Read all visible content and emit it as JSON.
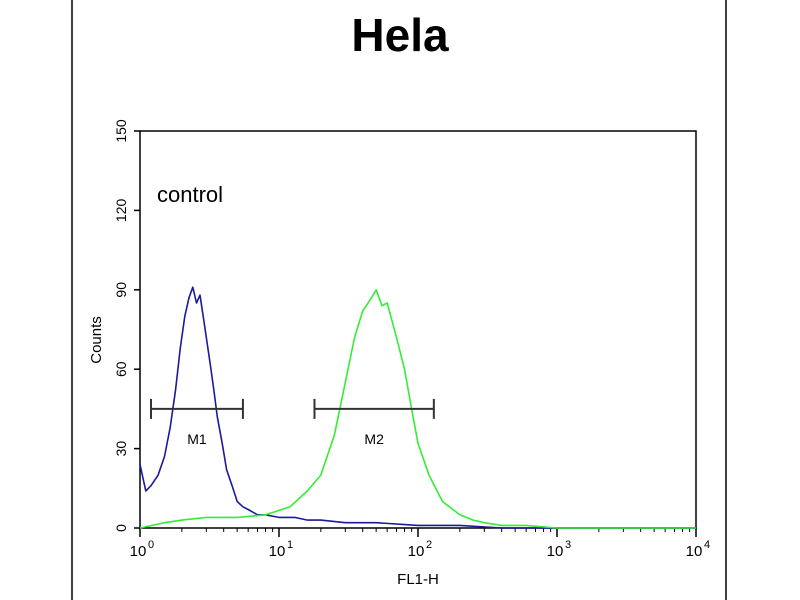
{
  "chart_data": {
    "type": "line",
    "title": "Hela",
    "xlabel": "FL1-H",
    "ylabel": "Counts",
    "xscale": "log",
    "xlim": [
      1,
      10000
    ],
    "ylim": [
      0,
      150
    ],
    "xticks": [
      {
        "value": 1,
        "base": "10",
        "exp": "0"
      },
      {
        "value": 10,
        "base": "10",
        "exp": "1"
      },
      {
        "value": 100,
        "base": "10",
        "exp": "2"
      },
      {
        "value": 1000,
        "base": "10",
        "exp": "3"
      },
      {
        "value": 10000,
        "base": "10",
        "exp": "4"
      }
    ],
    "yticks": [
      0,
      30,
      60,
      90,
      120,
      150
    ],
    "annotation": "control",
    "series": [
      {
        "color": "#1a1a9c",
        "x": [
          1.0,
          1.1,
          1.2,
          1.35,
          1.5,
          1.65,
          1.8,
          1.95,
          2.1,
          2.25,
          2.4,
          2.55,
          2.7,
          2.85,
          3.0,
          3.2,
          3.4,
          3.6,
          3.9,
          4.2,
          4.6,
          5.0,
          5.5,
          6.0,
          7.0,
          8.0,
          10,
          13,
          16,
          20,
          30,
          50,
          100,
          200,
          400,
          1000,
          10000
        ],
        "y": [
          24,
          14,
          16,
          20,
          27,
          38,
          52,
          68,
          80,
          87,
          91,
          85,
          88,
          80,
          72,
          62,
          52,
          42,
          32,
          22,
          16,
          10,
          8,
          7,
          5,
          5,
          4,
          4,
          3,
          3,
          2,
          2,
          1,
          1,
          0,
          0,
          0
        ]
      },
      {
        "color": "#33ee33",
        "x": [
          1.0,
          1.5,
          2.0,
          3.0,
          5.0,
          8.0,
          12,
          16,
          20,
          25,
          30,
          35,
          40,
          45,
          50,
          55,
          60,
          70,
          80,
          90,
          100,
          120,
          150,
          200,
          250,
          300,
          400,
          600,
          1000,
          3000,
          10000
        ],
        "y": [
          0,
          2,
          3,
          4,
          4,
          5,
          8,
          14,
          20,
          35,
          55,
          72,
          82,
          86,
          90,
          84,
          85,
          72,
          60,
          45,
          32,
          20,
          10,
          5,
          3,
          2,
          1,
          1,
          0,
          0,
          0
        ]
      }
    ],
    "markers": [
      {
        "label": "M1",
        "x_start": 1.2,
        "x_end": 5.5,
        "y": 45
      },
      {
        "label": "M2",
        "x_start": 18,
        "x_end": 130,
        "y": 45
      }
    ]
  }
}
